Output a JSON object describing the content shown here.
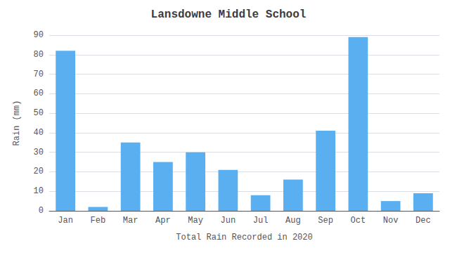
{
  "chart_data": {
    "type": "bar",
    "title": "Lansdowne Middle School",
    "xlabel": "Total Rain Recorded in 2020",
    "ylabel": "Rain (mm)",
    "categories": [
      "Jan",
      "Feb",
      "Mar",
      "Apr",
      "May",
      "Jun",
      "Jul",
      "Aug",
      "Sep",
      "Oct",
      "Nov",
      "Dec"
    ],
    "values": [
      82,
      2,
      35,
      25,
      30,
      21,
      8,
      16,
      41,
      89,
      5,
      9
    ],
    "color": "#5aaff0",
    "ylim": [
      0,
      90
    ],
    "yticks": [
      0,
      10,
      20,
      30,
      40,
      50,
      60,
      70,
      80,
      90
    ],
    "grid": true
  }
}
